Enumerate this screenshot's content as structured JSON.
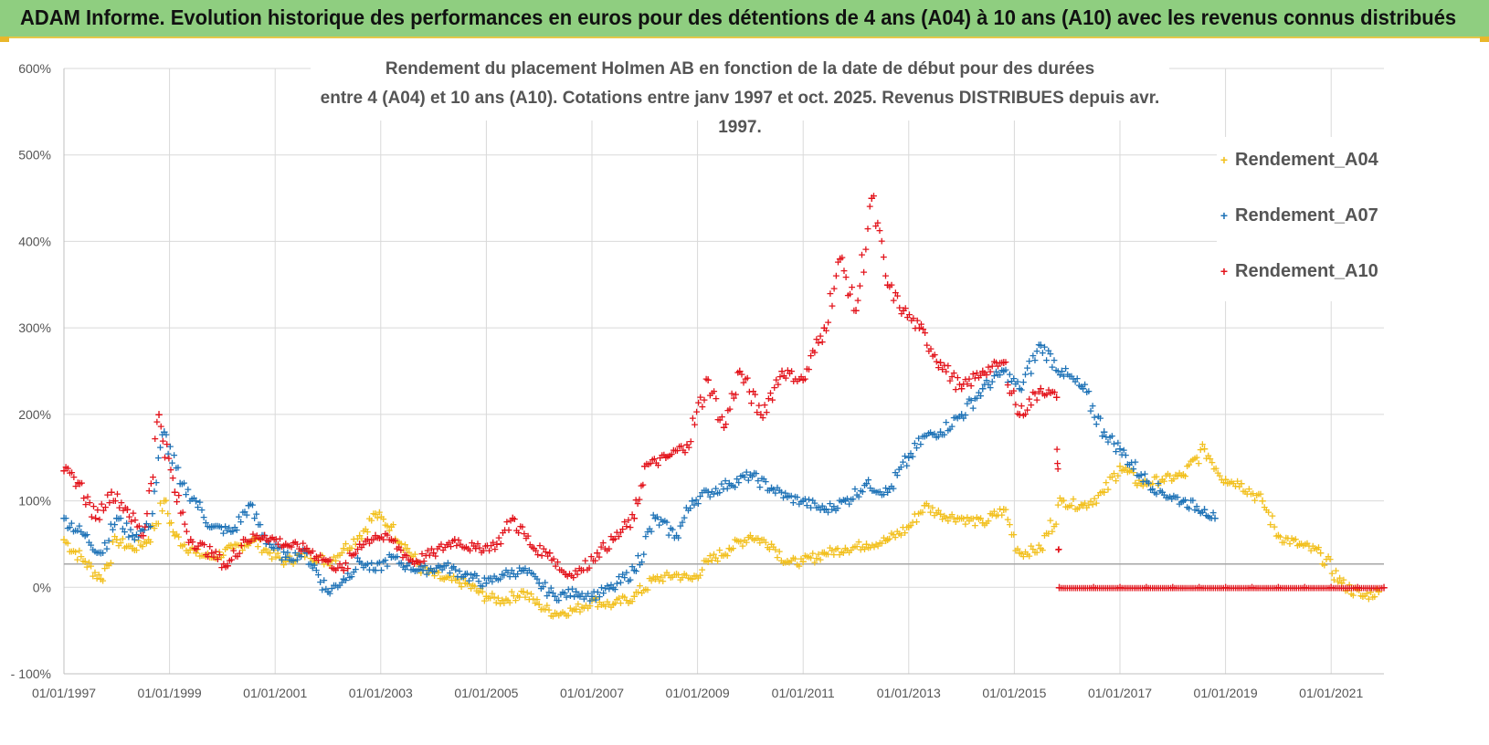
{
  "header": {
    "title": "ADAM Informe. Evolution historique des performances en euros pour des détentions de 4 ans (A04) à 10 ans (A10) avec les revenus connus distribués"
  },
  "chart_data": {
    "type": "scatter",
    "title_line1": "Rendement du placement Holmen AB en fonction de la date de début pour des durées",
    "title_line2": "entre 4 (A04) et 10 ans (A10). Cotations entre janv 1997 et oct. 2025. Revenus DISTRIBUES depuis avr. 1997.",
    "xlabel": "",
    "ylabel": "",
    "x_range": [
      1997.0,
      2022.0
    ],
    "ylim": [
      -100,
      600
    ],
    "y_ticks": [
      -100,
      0,
      100,
      200,
      300,
      400,
      500,
      600
    ],
    "y_tick_labels": [
      "- 100%",
      "0%",
      "100%",
      "200%",
      "300%",
      "400%",
      "500%",
      "600%"
    ],
    "x_ticks": [
      1997,
      1999,
      2001,
      2003,
      2005,
      2007,
      2009,
      2011,
      2013,
      2015,
      2017,
      2019,
      2021
    ],
    "x_tick_labels": [
      "01/01/1997",
      "01/01/1999",
      "01/01/2001",
      "01/01/2003",
      "01/01/2005",
      "01/01/2007",
      "01/01/2009",
      "01/01/2011",
      "01/01/2013",
      "01/01/2015",
      "01/01/2017",
      "01/01/2019",
      "01/01/2021"
    ],
    "reference_line_y": 27,
    "grid": true,
    "legend_position": "right",
    "series": [
      {
        "name": "Rendement_A04",
        "color": "#f2c01e",
        "points": [
          [
            1997.0,
            55
          ],
          [
            1997.4,
            30
          ],
          [
            1997.7,
            10
          ],
          [
            1998.0,
            55
          ],
          [
            1998.3,
            45
          ],
          [
            1998.6,
            55
          ],
          [
            1998.9,
            100
          ],
          [
            1999.1,
            60
          ],
          [
            1999.5,
            40
          ],
          [
            1999.8,
            35
          ],
          [
            2000.2,
            45
          ],
          [
            2000.6,
            55
          ],
          [
            2000.9,
            40
          ],
          [
            2001.2,
            30
          ],
          [
            2001.6,
            40
          ],
          [
            2002.0,
            30
          ],
          [
            2002.3,
            45
          ],
          [
            2002.6,
            60
          ],
          [
            2002.9,
            85
          ],
          [
            2003.2,
            70
          ],
          [
            2003.5,
            45
          ],
          [
            2003.8,
            20
          ],
          [
            2004.2,
            10
          ],
          [
            2004.6,
            5
          ],
          [
            2005.0,
            -10
          ],
          [
            2005.3,
            -15
          ],
          [
            2005.7,
            -5
          ],
          [
            2006.0,
            -20
          ],
          [
            2006.3,
            -30
          ],
          [
            2006.7,
            -25
          ],
          [
            2007.0,
            -15
          ],
          [
            2007.4,
            -20
          ],
          [
            2007.8,
            -10
          ],
          [
            2008.2,
            10
          ],
          [
            2008.6,
            15
          ],
          [
            2008.9,
            10
          ],
          [
            2009.2,
            30
          ],
          [
            2009.6,
            45
          ],
          [
            2010.0,
            60
          ],
          [
            2010.4,
            50
          ],
          [
            2010.7,
            30
          ],
          [
            2011.0,
            30
          ],
          [
            2011.4,
            40
          ],
          [
            2011.8,
            45
          ],
          [
            2012.2,
            50
          ],
          [
            2012.6,
            55
          ],
          [
            2013.0,
            70
          ],
          [
            2013.3,
            95
          ],
          [
            2013.6,
            85
          ],
          [
            2014.0,
            80
          ],
          [
            2014.4,
            75
          ],
          [
            2014.8,
            90
          ],
          [
            2015.1,
            40
          ],
          [
            2015.5,
            45
          ],
          [
            2015.9,
            100
          ],
          [
            2016.3,
            95
          ],
          [
            2016.7,
            110
          ],
          [
            2017.0,
            140
          ],
          [
            2017.4,
            120
          ],
          [
            2017.8,
            125
          ],
          [
            2018.2,
            130
          ],
          [
            2018.6,
            160
          ],
          [
            2019.0,
            125
          ],
          [
            2019.3,
            120
          ],
          [
            2019.7,
            100
          ],
          [
            2020.0,
            60
          ],
          [
            2020.4,
            50
          ],
          [
            2020.8,
            40
          ],
          [
            2021.2,
            5
          ],
          [
            2021.6,
            -10
          ],
          [
            2021.9,
            -5
          ]
        ]
      },
      {
        "name": "Rendement_A07",
        "color": "#1f73b7",
        "points": [
          [
            1997.0,
            80
          ],
          [
            1997.4,
            60
          ],
          [
            1997.7,
            40
          ],
          [
            1998.0,
            80
          ],
          [
            1998.3,
            60
          ],
          [
            1998.6,
            70
          ],
          [
            1998.9,
            180
          ],
          [
            1999.2,
            120
          ],
          [
            1999.5,
            100
          ],
          [
            1999.8,
            70
          ],
          [
            2000.2,
            65
          ],
          [
            2000.5,
            95
          ],
          [
            2000.9,
            50
          ],
          [
            2001.2,
            35
          ],
          [
            2001.6,
            40
          ],
          [
            2002.0,
            -5
          ],
          [
            2002.3,
            10
          ],
          [
            2002.6,
            30
          ],
          [
            2002.9,
            20
          ],
          [
            2003.2,
            35
          ],
          [
            2003.5,
            25
          ],
          [
            2003.8,
            20
          ],
          [
            2004.2,
            25
          ],
          [
            2004.6,
            15
          ],
          [
            2005.0,
            5
          ],
          [
            2005.3,
            15
          ],
          [
            2005.7,
            20
          ],
          [
            2006.0,
            5
          ],
          [
            2006.3,
            -10
          ],
          [
            2006.7,
            -5
          ],
          [
            2007.0,
            -10
          ],
          [
            2007.4,
            0
          ],
          [
            2007.8,
            20
          ],
          [
            2008.2,
            80
          ],
          [
            2008.6,
            60
          ],
          [
            2008.9,
            100
          ],
          [
            2009.2,
            110
          ],
          [
            2009.6,
            120
          ],
          [
            2010.0,
            130
          ],
          [
            2010.4,
            115
          ],
          [
            2010.7,
            105
          ],
          [
            2011.0,
            100
          ],
          [
            2011.4,
            90
          ],
          [
            2011.8,
            100
          ],
          [
            2012.2,
            120
          ],
          [
            2012.6,
            110
          ],
          [
            2013.0,
            150
          ],
          [
            2013.3,
            175
          ],
          [
            2013.6,
            180
          ],
          [
            2014.0,
            200
          ],
          [
            2014.4,
            230
          ],
          [
            2014.8,
            250
          ],
          [
            2015.1,
            230
          ],
          [
            2015.5,
            280
          ],
          [
            2015.9,
            250
          ],
          [
            2016.3,
            230
          ],
          [
            2016.7,
            180
          ],
          [
            2017.0,
            160
          ],
          [
            2017.4,
            130
          ],
          [
            2017.8,
            110
          ],
          [
            2018.2,
            100
          ],
          [
            2018.6,
            90
          ],
          [
            2018.8,
            80
          ]
        ]
      },
      {
        "name": "Rendement_A10",
        "color": "#e3141c",
        "points": [
          [
            1997.0,
            135
          ],
          [
            1997.3,
            120
          ],
          [
            1997.6,
            80
          ],
          [
            1997.9,
            110
          ],
          [
            1998.2,
            90
          ],
          [
            1998.5,
            60
          ],
          [
            1998.8,
            200
          ],
          [
            1999.1,
            110
          ],
          [
            1999.4,
            55
          ],
          [
            1999.8,
            40
          ],
          [
            2000.1,
            25
          ],
          [
            2000.4,
            55
          ],
          [
            2000.8,
            60
          ],
          [
            2001.2,
            50
          ],
          [
            2001.6,
            45
          ],
          [
            2002.0,
            30
          ],
          [
            2002.3,
            20
          ],
          [
            2002.6,
            50
          ],
          [
            2002.9,
            60
          ],
          [
            2003.2,
            55
          ],
          [
            2003.6,
            30
          ],
          [
            2004.0,
            40
          ],
          [
            2004.4,
            55
          ],
          [
            2004.8,
            45
          ],
          [
            2005.2,
            50
          ],
          [
            2005.5,
            80
          ],
          [
            2005.9,
            45
          ],
          [
            2006.2,
            40
          ],
          [
            2006.5,
            15
          ],
          [
            2006.8,
            20
          ],
          [
            2007.1,
            40
          ],
          [
            2007.4,
            55
          ],
          [
            2007.8,
            80
          ],
          [
            2008.0,
            140
          ],
          [
            2008.4,
            150
          ],
          [
            2008.8,
            165
          ],
          [
            2009.2,
            240
          ],
          [
            2009.5,
            185
          ],
          [
            2009.8,
            250
          ],
          [
            2010.2,
            200
          ],
          [
            2010.6,
            250
          ],
          [
            2011.0,
            240
          ],
          [
            2011.4,
            300
          ],
          [
            2011.7,
            380
          ],
          [
            2012.0,
            320
          ],
          [
            2012.3,
            450
          ],
          [
            2012.6,
            350
          ],
          [
            2012.9,
            320
          ],
          [
            2013.2,
            300
          ],
          [
            2013.6,
            260
          ],
          [
            2014.0,
            230
          ],
          [
            2014.4,
            250
          ],
          [
            2014.8,
            260
          ],
          [
            2015.1,
            200
          ],
          [
            2015.5,
            230
          ],
          [
            2015.8,
            220
          ],
          [
            2015.85,
            0
          ],
          [
            2016.5,
            0
          ],
          [
            2017.0,
            0
          ],
          [
            2017.5,
            0
          ],
          [
            2018.0,
            0
          ],
          [
            2018.5,
            0
          ],
          [
            2019.0,
            0
          ],
          [
            2019.5,
            0
          ],
          [
            2020.0,
            0
          ],
          [
            2020.5,
            0
          ],
          [
            2021.0,
            0
          ],
          [
            2021.5,
            0
          ],
          [
            2022.0,
            0
          ]
        ]
      }
    ]
  }
}
